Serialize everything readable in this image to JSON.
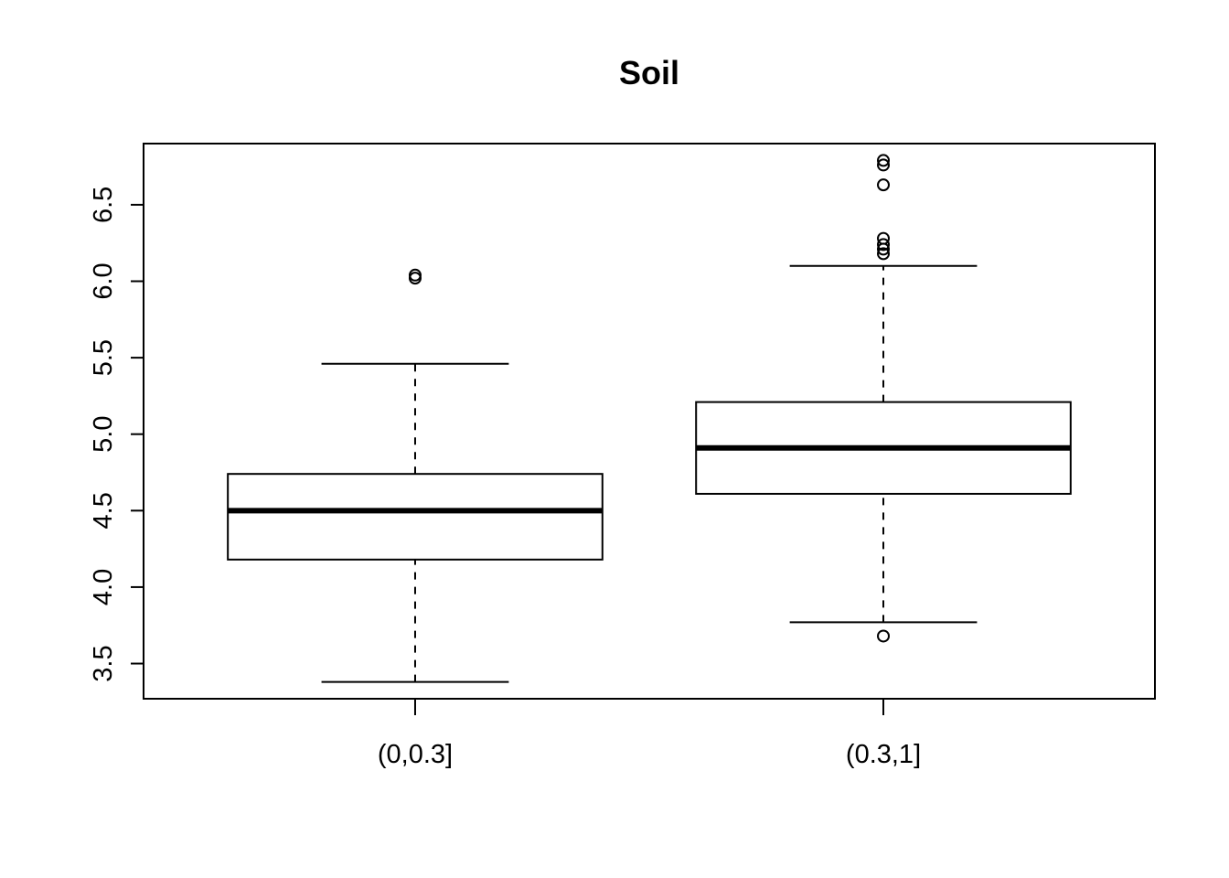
{
  "chart_data": {
    "type": "box",
    "title": "Soil",
    "xlabel": "",
    "ylabel": "",
    "ylim": [
      3.27,
      6.9
    ],
    "y_ticks": [
      "3.5",
      "4.0",
      "4.5",
      "5.0",
      "5.5",
      "6.0",
      "6.5"
    ],
    "categories": [
      "(0,0.3]",
      "(0.3,1]"
    ],
    "boxes": [
      {
        "category": "(0,0.3]",
        "whisker_low": 3.38,
        "q1": 4.18,
        "median": 4.5,
        "q3": 4.74,
        "whisker_high": 5.46,
        "outliers": [
          6.02,
          6.04
        ]
      },
      {
        "category": "(0.3,1]",
        "whisker_low": 3.77,
        "q1": 4.61,
        "median": 4.91,
        "q3": 5.21,
        "whisker_high": 6.1,
        "outliers": [
          3.68,
          6.18,
          6.21,
          6.24,
          6.28,
          6.63,
          6.76,
          6.79
        ]
      }
    ],
    "grid": false,
    "legend": "none",
    "colors": {
      "stroke": "#000000",
      "box_fill": "#ffffff",
      "background": "#ffffff"
    }
  }
}
